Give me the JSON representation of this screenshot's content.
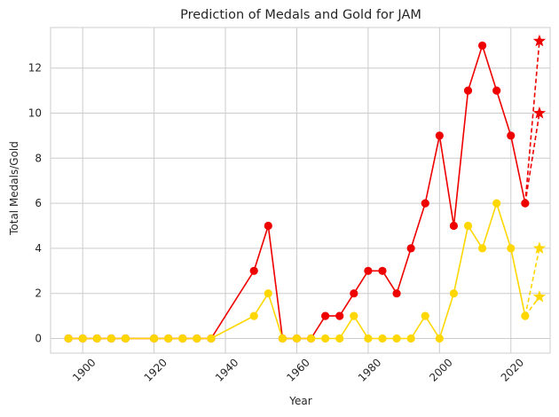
{
  "chart_data": {
    "type": "line",
    "title": "Prediction of Medals and Gold for JAM",
    "xlabel": "Year",
    "ylabel": "Total Medals/Gold",
    "xlim": [
      1891,
      2031
    ],
    "ylim": [
      -0.65,
      13.8
    ],
    "x_ticks": [
      1900,
      1920,
      1940,
      1960,
      1980,
      2000,
      2020
    ],
    "y_ticks": [
      0,
      2,
      4,
      6,
      8,
      10,
      12
    ],
    "grid": true,
    "legend": "none",
    "series": [
      {
        "color": "#ee0000",
        "marker": "circle",
        "x": [
          1896,
          1900,
          1904,
          1908,
          1912,
          1920,
          1924,
          1928,
          1932,
          1936,
          1948,
          1952,
          1956,
          1960,
          1964,
          1968,
          1972,
          1976,
          1980,
          1984,
          1988,
          1992,
          1996,
          2000,
          2004,
          2008,
          2012,
          2016,
          2020,
          2024
        ],
        "y": [
          0,
          0,
          0,
          0,
          0,
          0,
          0,
          0,
          0,
          0,
          3,
          5,
          0,
          0,
          0,
          1,
          1,
          2,
          3,
          3,
          2,
          4,
          6,
          9,
          5,
          11,
          13,
          11,
          9,
          6
        ]
      },
      {
        "color": "#ffd700",
        "marker": "circle",
        "x": [
          1896,
          1900,
          1904,
          1908,
          1912,
          1920,
          1924,
          1928,
          1932,
          1936,
          1948,
          1952,
          1956,
          1960,
          1964,
          1968,
          1972,
          1976,
          1980,
          1984,
          1988,
          1992,
          1996,
          2000,
          2004,
          2008,
          2012,
          2016,
          2020,
          2024
        ],
        "y": [
          0,
          0,
          0,
          0,
          0,
          0,
          0,
          0,
          0,
          0,
          1,
          2,
          0,
          0,
          0,
          0,
          0,
          1,
          0,
          0,
          0,
          0,
          1,
          0,
          2,
          5,
          4,
          6,
          4,
          1
        ]
      }
    ],
    "predictions": [
      {
        "color": "#ee0000",
        "marker": "star",
        "from": [
          2024,
          6
        ],
        "points": [
          [
            2028,
            13.2
          ],
          [
            2028,
            10.0
          ]
        ]
      },
      {
        "color": "#ffd700",
        "marker": "star",
        "from": [
          2024,
          1
        ],
        "points": [
          [
            2028,
            4.0
          ],
          [
            2028,
            1.85
          ]
        ]
      }
    ]
  }
}
